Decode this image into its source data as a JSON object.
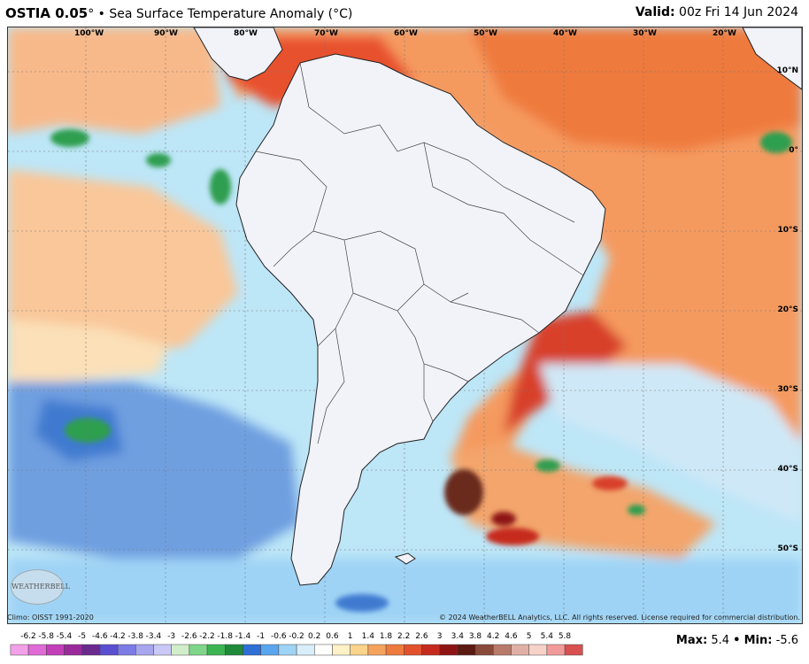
{
  "header": {
    "product": "OSTIA 0.05",
    "product_suffix": "° • Sea Surface Temperature Anomaly (°C)",
    "valid_label": "Valid:",
    "valid_time": "00z Fri 14 Jun 2024"
  },
  "map": {
    "lon_labels": [
      "100°W",
      "90°W",
      "80°W",
      "70°W",
      "60°W",
      "50°W",
      "40°W",
      "30°W",
      "20°W"
    ],
    "lat_labels": [
      "10°N",
      "0°",
      "10°S",
      "20°S",
      "30°S",
      "40°S",
      "50°S"
    ],
    "logo_text": "WEATHERBELL",
    "colors": {
      "land": "#f1f3f9",
      "ocean_base": "#bde6f7",
      "warm_orange": "#f08a4b",
      "warm_red": "#d9442b",
      "cool_blue": "#4f86d8",
      "green": "#2e9e4f"
    }
  },
  "footer": {
    "climo": "Climo: OISST 1991-2020",
    "copyright": "© 2024 WeatherBELL Analytics, LLC. All rights reserved. License required for commercial distribution."
  },
  "scale": {
    "ticks": [
      "-6.2",
      "-5.8",
      "-5.4",
      "-5",
      "-4.6",
      "-4.2",
      "-3.8",
      "-3.4",
      "-3",
      "-2.6",
      "-2.2",
      "-1.8",
      "-1.4",
      "-1",
      "-0.6",
      "-0.2",
      "0.2",
      "0.6",
      "1",
      "1.4",
      "1.8",
      "2.2",
      "2.6",
      "3",
      "3.4",
      "3.8",
      "4.2",
      "4.6",
      "5",
      "5.4",
      "5.8"
    ],
    "colors": [
      "#f2a0e8",
      "#e06ad6",
      "#c23fb8",
      "#9a2a9c",
      "#6b2a8e",
      "#5a4fd0",
      "#7d7be6",
      "#a7a6ef",
      "#c9c8f6",
      "#cfeec9",
      "#7fd68a",
      "#3cb451",
      "#1f8a3a",
      "#2f6fd6",
      "#5aa6ee",
      "#9fd3f5",
      "#d8eefb",
      "#ffffff",
      "#fff1c8",
      "#fbd38a",
      "#f5a35c",
      "#ef7a3e",
      "#e2502c",
      "#c62a1f",
      "#8e1414",
      "#5c1a12",
      "#8a4a3a",
      "#b87a6a",
      "#e0b0a6",
      "#f6d2c8",
      "#f29a9a",
      "#d85050"
    ]
  },
  "maxmin": {
    "max_label": "Max:",
    "max_value": "5.4",
    "sep": "•",
    "min_label": "Min:",
    "min_value": "-5.6"
  }
}
